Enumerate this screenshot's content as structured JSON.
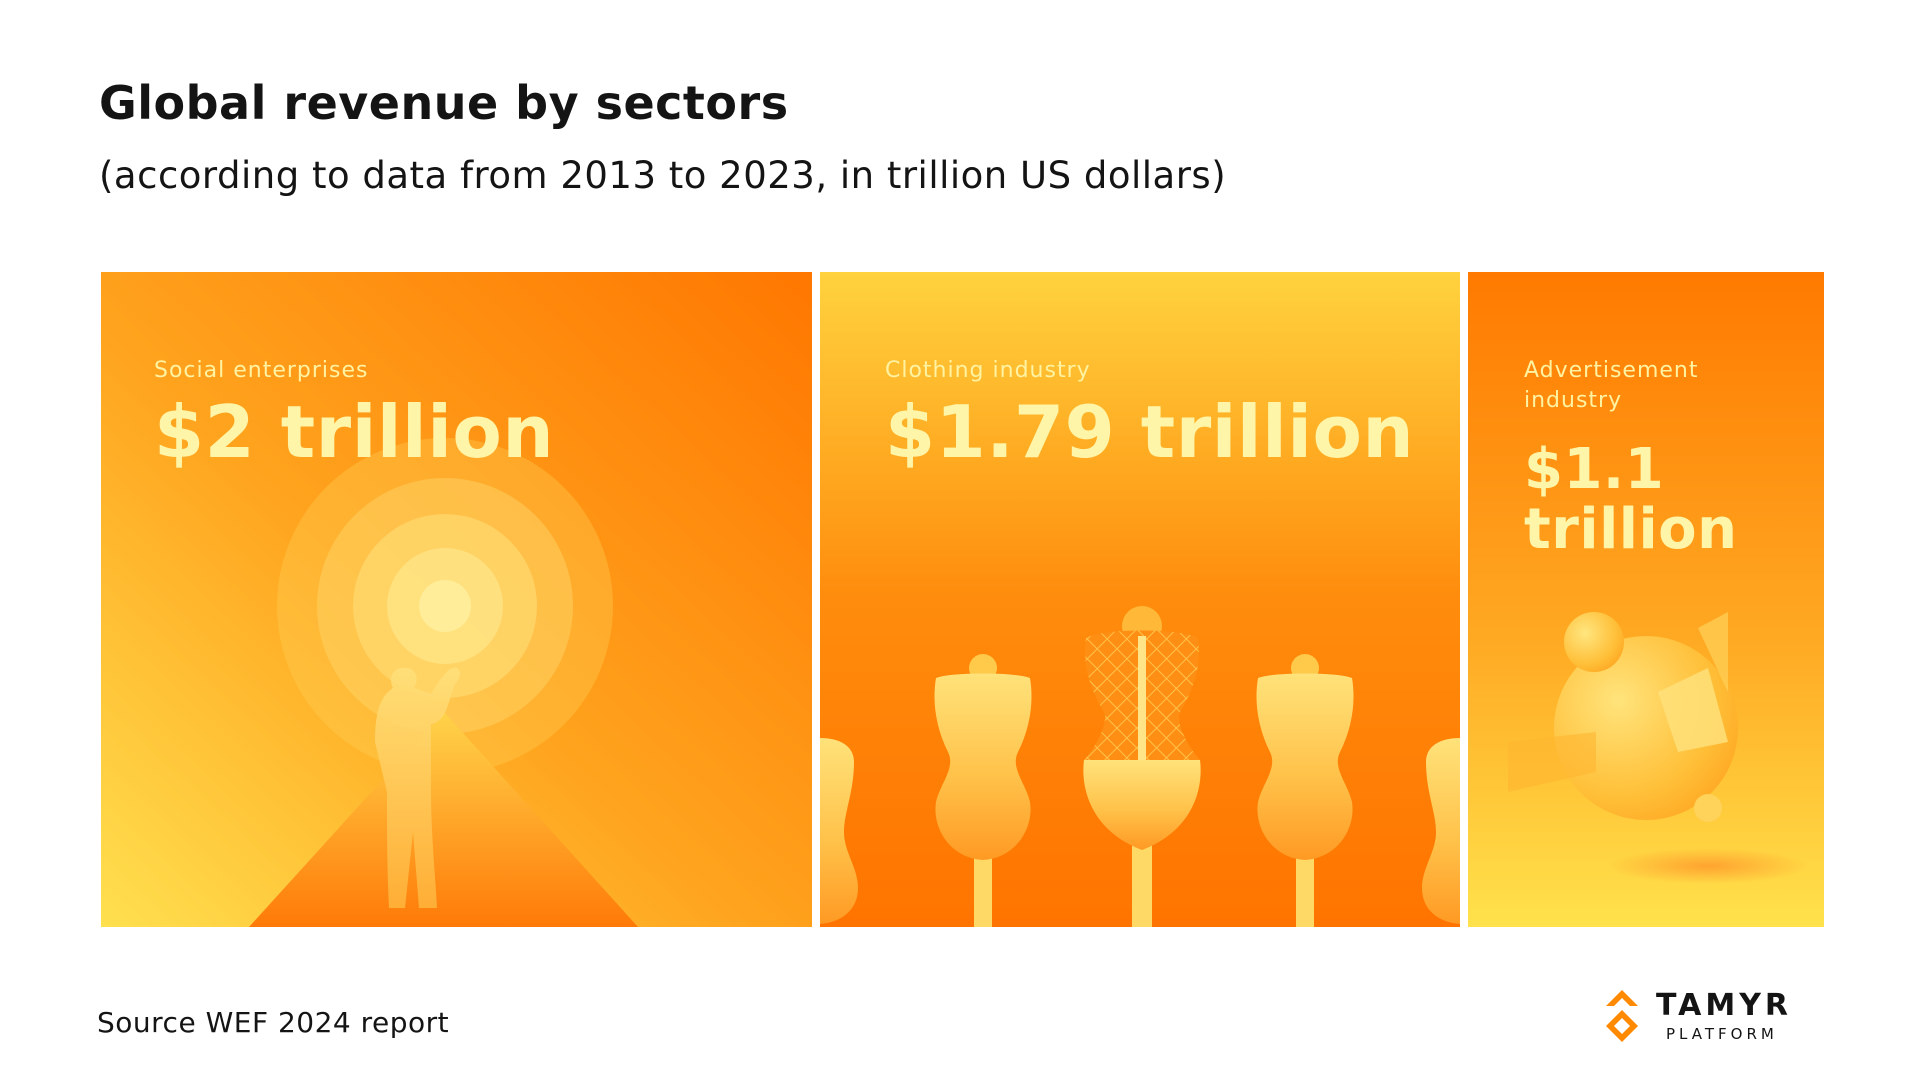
{
  "header": {
    "title": "Global revenue by sectors",
    "subtitle": "(according to data from 2013 to 2023, in trillion US dollars)"
  },
  "chart_data": {
    "type": "bar",
    "title": "Global revenue by sectors",
    "subtitle": "(according to data from 2013 to 2023, in trillion US dollars)",
    "unit": "trillion US dollars",
    "categories": [
      "Social enterprises",
      "Clothing industry",
      "Advertisement industry"
    ],
    "values": [
      2,
      1.79,
      1.1
    ],
    "value_labels": [
      "$2 trillion",
      "$1.79 trillion",
      "$1.1 trillion"
    ],
    "xlabel": "",
    "ylabel": ""
  },
  "panels": [
    {
      "label": "Social enterprises",
      "value": "$2 trillion",
      "icon": "person-sun-illustration"
    },
    {
      "label": "Clothing industry",
      "value": "$1.79 trillion",
      "icon": "mannequins-illustration"
    },
    {
      "label_line1": "Advertisement",
      "label_line2": "industry",
      "value_line1": "$1.1",
      "value_line2": "trillion",
      "icon": "abstract-shapes-illustration"
    }
  ],
  "footer": {
    "source": "Source WEF 2024 report",
    "logo_word": "TAMYR",
    "logo_sub": "PLATFORM"
  },
  "colors": {
    "orange": "#ff7a00",
    "yellow": "#ffd84a",
    "cream": "#fff5a8",
    "logo_orange": "#ff8a00"
  }
}
